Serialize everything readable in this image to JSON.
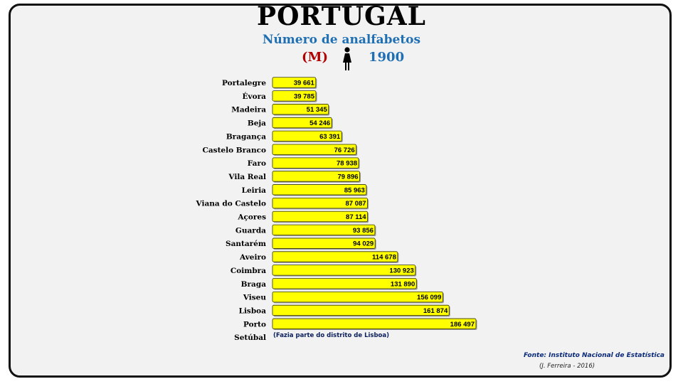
{
  "header": {
    "title": "PORTUGAL",
    "subtitle": "Número de analfabetos",
    "sex_label": "(M)",
    "year_label": "1900",
    "icon": "woman-icon"
  },
  "chart_data": {
    "type": "bar",
    "orientation": "horizontal",
    "categories": [
      "Portalegre",
      "Évora",
      "Madeira",
      "Beja",
      "Bragança",
      "Castelo Branco",
      "Faro",
      "Vila Real",
      "Leiria",
      "Viana do Castelo",
      "Açores",
      "Guarda",
      "Santarém",
      "Aveiro",
      "Coimbra",
      "Braga",
      "Viseu",
      "Lisboa",
      "Porto",
      "Setúbal"
    ],
    "values": [
      39661,
      39785,
      51345,
      54246,
      63391,
      76726,
      78938,
      79896,
      85963,
      87087,
      87114,
      93856,
      94029,
      114678,
      130923,
      131890,
      156099,
      161874,
      186497,
      null
    ],
    "value_labels": [
      "39 661",
      "39 785",
      "51 345",
      "54 246",
      "63 391",
      "76 726",
      "78 938",
      "79 896",
      "85 963",
      "87 087",
      "87 114",
      "93 856",
      "94 029",
      "114 678",
      "130 923",
      "131 890",
      "156 099",
      "161 874",
      "186 497",
      ""
    ],
    "xlim": [
      0,
      186497
    ],
    "bar_color": "#ffff00",
    "bar_border_color": "#333300",
    "grid": false,
    "legend": "none"
  },
  "footer": {
    "note": "(Fazia parte do distrito de Lisboa)",
    "source": "Fonte: Instituto Nacional de Estatística",
    "author": "(J. Ferreira - 2016)"
  }
}
